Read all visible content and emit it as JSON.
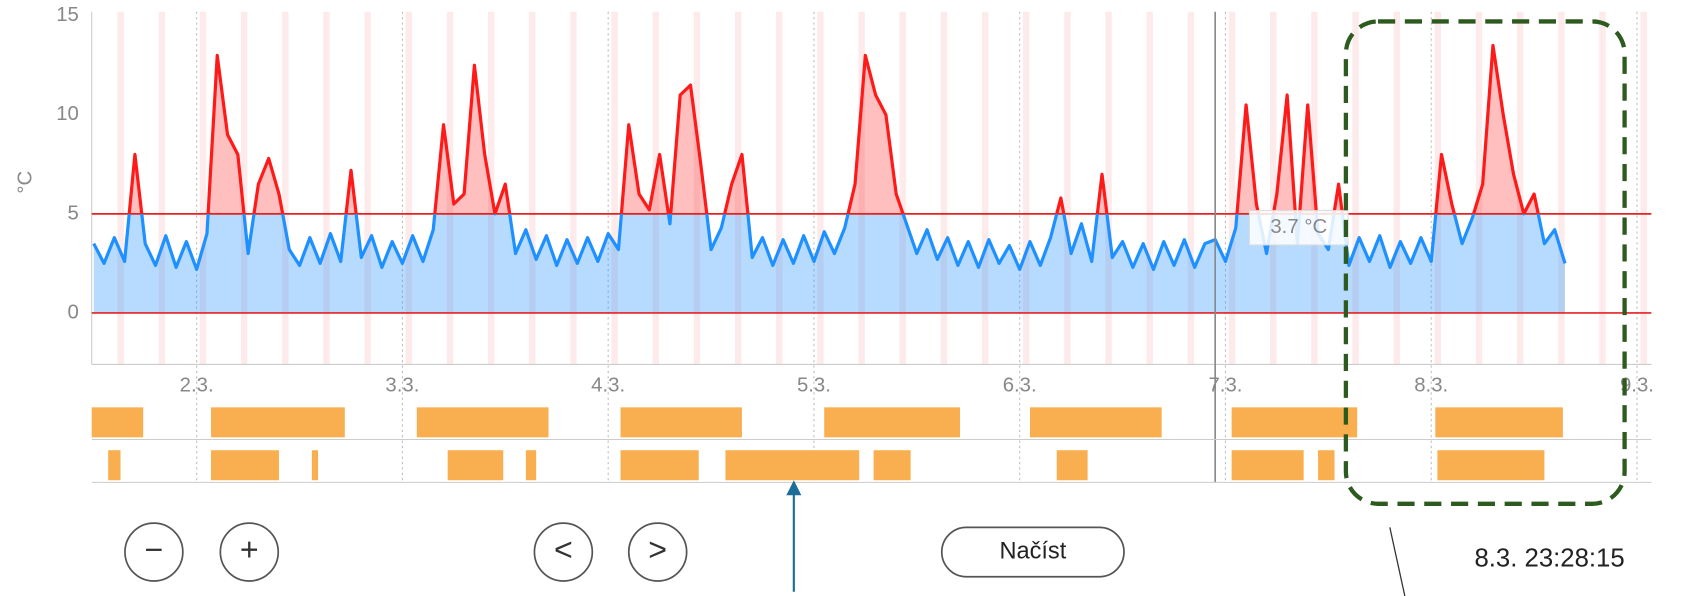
{
  "chart_data": {
    "type": "line",
    "y_label": "°C",
    "x": [
      1.5,
      1.55,
      1.6,
      1.65,
      1.7,
      1.75,
      1.8,
      1.85,
      1.9,
      1.95,
      2,
      2.05,
      2.1,
      2.15,
      2.2,
      2.25,
      2.3,
      2.35,
      2.4,
      2.45,
      2.5,
      2.55,
      2.6,
      2.65,
      2.7,
      2.75,
      2.8,
      2.85,
      2.9,
      2.95,
      3,
      3.05,
      3.1,
      3.15,
      3.2,
      3.25,
      3.3,
      3.35,
      3.4,
      3.45,
      3.5,
      3.55,
      3.6,
      3.65,
      3.7,
      3.75,
      3.8,
      3.85,
      3.9,
      3.95,
      4,
      4.05,
      4.1,
      4.15,
      4.2,
      4.25,
      4.3,
      4.35,
      4.4,
      4.45,
      4.5,
      4.55,
      4.6,
      4.65,
      4.7,
      4.75,
      4.8,
      4.85,
      4.9,
      4.95,
      5,
      5.05,
      5.1,
      5.15,
      5.2,
      5.25,
      5.3,
      5.35,
      5.4,
      5.45,
      5.5,
      5.55,
      5.6,
      5.65,
      5.7,
      5.75,
      5.8,
      5.85,
      5.9,
      5.95,
      6,
      6.05,
      6.1,
      6.15,
      6.2,
      6.25,
      6.3,
      6.35,
      6.4,
      6.45,
      6.5,
      6.55,
      6.6,
      6.65,
      6.7,
      6.75,
      6.8,
      6.85,
      6.9,
      6.95,
      7,
      7.05,
      7.1,
      7.15,
      7.2,
      7.25,
      7.3,
      7.35,
      7.4,
      7.45,
      7.5,
      7.55,
      7.6,
      7.65,
      7.7,
      7.75,
      7.8,
      7.85,
      7.9,
      7.95,
      8,
      8.05,
      8.1,
      8.15,
      8.2,
      8.25,
      8.3,
      8.35,
      8.4,
      8.45,
      8.5,
      8.55,
      8.6,
      8.65
    ],
    "series": [
      {
        "color": "#1e90ff",
        "color_above": "#ff1a1a",
        "values": [
          3.5,
          2.5,
          3.8,
          2.6,
          8,
          3.5,
          2.4,
          3.9,
          2.3,
          3.6,
          2.2,
          4,
          13,
          9,
          8,
          3,
          6.5,
          7.8,
          6,
          3.2,
          2.4,
          3.8,
          2.5,
          4,
          2.6,
          7.2,
          2.8,
          3.9,
          2.3,
          3.6,
          2.5,
          3.9,
          2.6,
          4.2,
          9.5,
          5.5,
          6,
          12.5,
          8,
          5,
          6.5,
          3,
          4.2,
          2.7,
          3.9,
          2.4,
          3.7,
          2.5,
          3.8,
          2.6,
          4,
          3.2,
          9.5,
          6,
          5.2,
          8,
          4.5,
          11,
          11.5,
          7.5,
          3.2,
          4.3,
          6.5,
          8,
          2.8,
          3.8,
          2.4,
          3.7,
          2.5,
          3.9,
          2.6,
          4.1,
          3,
          4.3,
          6.5,
          13,
          11,
          10,
          6,
          4.5,
          3,
          4.2,
          2.7,
          3.8,
          2.4,
          3.6,
          2.3,
          3.7,
          2.5,
          3.4,
          2.2,
          3.6,
          2.4,
          3.8,
          5.8,
          3,
          4.5,
          2.6,
          7,
          2.8,
          3.6,
          2.3,
          3.5,
          2.2,
          3.6,
          2.4,
          3.7,
          2.3,
          3.5,
          3.7,
          2.6,
          4.3,
          10.5,
          5.5,
          3,
          6,
          11,
          3.5,
          10.5,
          4,
          3.2,
          6.5,
          2.4,
          3.8,
          2.6,
          3.9,
          2.3,
          3.6,
          2.5,
          3.8,
          2.6,
          8,
          5.5,
          3.5,
          4.8,
          6.5,
          13.5,
          10,
          7,
          5,
          6,
          3.5,
          4.2,
          2.5
        ]
      }
    ],
    "thresholds": [
      0,
      5
    ],
    "xlim": [
      1.49,
      9.07
    ],
    "ylim": [
      -2.6,
      15.2
    ],
    "yticks": [
      0,
      5,
      10,
      15
    ],
    "xticks": [
      {
        "value": 2,
        "label": "2.3."
      },
      {
        "value": 3,
        "label": "3.3."
      },
      {
        "value": 4,
        "label": "4.3."
      },
      {
        "value": 5,
        "label": "5.3."
      },
      {
        "value": 6,
        "label": "6.3."
      },
      {
        "value": 7,
        "label": "7.3."
      },
      {
        "value": 8,
        "label": "8.3."
      },
      {
        "value": 9,
        "label": "9.3."
      }
    ],
    "grid": true,
    "tooltip": {
      "x": 6.95,
      "label": "3.7 °C"
    },
    "band_color": "#f9ae4f",
    "bands": [
      [
        [
          1.49,
          1.74
        ],
        [
          2.07,
          2.72
        ],
        [
          3.07,
          3.71
        ],
        [
          4.06,
          4.65
        ],
        [
          5.05,
          5.71
        ],
        [
          6.05,
          6.69
        ],
        [
          7.03,
          7.64
        ],
        [
          8.02,
          8.64
        ]
      ],
      [
        [
          1.57,
          1.63
        ],
        [
          2.07,
          2.4
        ],
        [
          2.56,
          2.59
        ],
        [
          3.22,
          3.49
        ],
        [
          3.6,
          3.65
        ],
        [
          4.06,
          4.44
        ],
        [
          4.57,
          5.22
        ],
        [
          5.29,
          5.47
        ],
        [
          6.18,
          6.33
        ],
        [
          7.03,
          7.38
        ],
        [
          7.45,
          7.53
        ],
        [
          8.03,
          8.55
        ]
      ]
    ]
  },
  "controls": {
    "zoom_out": "−",
    "zoom_in": "+",
    "prev": "<",
    "next": ">",
    "load": "Načíst"
  },
  "timestamp": "8.3. 23:28:15"
}
